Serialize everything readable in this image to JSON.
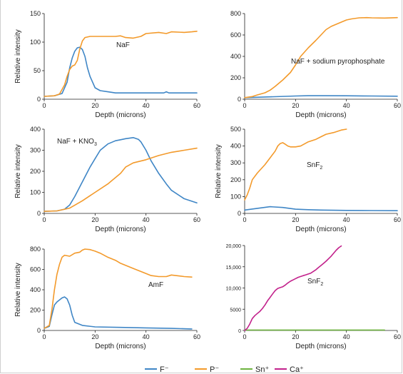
{
  "chart_data": [
    {
      "type": "line",
      "annotation": "NaF",
      "xlabel": "Depth (microns)",
      "ylabel": "Relative intensity",
      "xlim": [
        0,
        60
      ],
      "ylim": [
        0,
        150
      ],
      "xticks": [
        "0",
        "20",
        "40",
        "60"
      ],
      "yticks": [
        "0",
        "50",
        "100",
        "150"
      ],
      "series": [
        {
          "name": "F⁻",
          "color": "#3f86c6",
          "x": [
            0,
            4,
            7,
            9,
            10,
            11,
            12,
            13,
            14,
            15,
            16,
            17,
            18,
            20,
            22,
            25,
            28,
            30,
            35,
            40,
            45,
            47,
            48,
            49,
            50,
            55,
            60
          ],
          "y": [
            5,
            6,
            10,
            30,
            55,
            72,
            84,
            90,
            91,
            87,
            75,
            55,
            40,
            20,
            15,
            13,
            11,
            11,
            11,
            11,
            11,
            11,
            13,
            11,
            11,
            11,
            11
          ]
        },
        {
          "name": "P⁻",
          "color": "#f39a2b",
          "x": [
            0,
            4,
            6,
            8,
            9,
            10,
            11,
            12,
            13,
            14,
            15,
            16,
            18,
            20,
            25,
            28,
            30,
            32,
            35,
            38,
            40,
            45,
            48,
            50,
            55,
            58,
            60
          ],
          "y": [
            5,
            6,
            9,
            25,
            40,
            52,
            58,
            60,
            68,
            88,
            102,
            108,
            110,
            110,
            110,
            110,
            111,
            108,
            107,
            110,
            115,
            117,
            115,
            118,
            117,
            118,
            119
          ]
        }
      ]
    },
    {
      "type": "line",
      "annotation": "NaF + sodium pyrophosphate",
      "xlabel": "Depth (microns)",
      "ylabel": "",
      "xlim": [
        0,
        60
      ],
      "ylim": [
        0,
        800
      ],
      "xticks": [
        "0",
        "20",
        "40",
        "60"
      ],
      "yticks": [
        "0",
        "200",
        "400",
        "600",
        "800"
      ],
      "series": [
        {
          "name": "F⁻",
          "color": "#3f86c6",
          "x": [
            0,
            10,
            20,
            25,
            30,
            40,
            50,
            60
          ],
          "y": [
            15,
            22,
            30,
            33,
            33,
            32,
            30,
            28
          ]
        },
        {
          "name": "P⁻",
          "color": "#f39a2b",
          "x": [
            0,
            3,
            5,
            8,
            10,
            12,
            15,
            18,
            20,
            22,
            25,
            28,
            30,
            32,
            34,
            35,
            36,
            38,
            40,
            42,
            45,
            48,
            50,
            55,
            60
          ],
          "y": [
            15,
            25,
            40,
            60,
            85,
            120,
            180,
            250,
            320,
            400,
            480,
            550,
            600,
            650,
            680,
            690,
            700,
            720,
            740,
            750,
            760,
            762,
            760,
            758,
            762
          ]
        }
      ]
    },
    {
      "type": "line",
      "annotation": "NaF + KNO3",
      "xlabel": "Depth (microns)",
      "ylabel": "Relative intensity",
      "xlim": [
        0,
        60
      ],
      "ylim": [
        0,
        400
      ],
      "xticks": [
        "0",
        "20",
        "40",
        "60"
      ],
      "yticks": [
        "0",
        "100",
        "200",
        "300",
        "400"
      ],
      "series": [
        {
          "name": "F⁻",
          "color": "#3f86c6",
          "x": [
            0,
            5,
            8,
            10,
            12,
            15,
            18,
            20,
            22,
            25,
            28,
            30,
            32,
            35,
            37,
            38,
            40,
            42,
            45,
            48,
            50,
            55,
            60
          ],
          "y": [
            10,
            12,
            20,
            40,
            80,
            150,
            220,
            260,
            300,
            330,
            345,
            350,
            355,
            360,
            352,
            340,
            300,
            250,
            190,
            140,
            110,
            70,
            50
          ]
        },
        {
          "name": "P⁻",
          "color": "#f39a2b",
          "x": [
            0,
            5,
            10,
            15,
            20,
            25,
            30,
            32,
            35,
            40,
            45,
            50,
            55,
            60
          ],
          "y": [
            10,
            12,
            25,
            60,
            100,
            140,
            190,
            220,
            240,
            255,
            275,
            290,
            300,
            310
          ]
        }
      ]
    },
    {
      "type": "line",
      "annotation": "SnF2",
      "xlabel": "Depth (microns)",
      "ylabel": "Relative intensity",
      "xlim": [
        0,
        60
      ],
      "ylim": [
        0,
        500
      ],
      "xticks": [
        "0",
        "20",
        "40",
        "60"
      ],
      "yticks": [
        "0",
        "100",
        "200",
        "300",
        "400",
        "500"
      ],
      "series": [
        {
          "name": "F⁻",
          "color": "#3f86c6",
          "x": [
            0,
            5,
            10,
            15,
            20,
            25,
            30,
            40,
            50,
            60
          ],
          "y": [
            20,
            30,
            40,
            35,
            25,
            22,
            20,
            18,
            17,
            16
          ]
        },
        {
          "name": "P⁻",
          "color": "#f39a2b",
          "x": [
            0,
            1,
            2,
            3,
            5,
            8,
            10,
            12,
            13,
            14,
            15,
            16,
            17,
            18,
            20,
            22,
            25,
            28,
            30,
            32,
            35,
            38,
            40
          ],
          "y": [
            80,
            110,
            150,
            200,
            240,
            290,
            330,
            370,
            400,
            415,
            420,
            410,
            400,
            395,
            395,
            400,
            425,
            440,
            455,
            470,
            480,
            495,
            500
          ]
        }
      ]
    },
    {
      "type": "line",
      "annotation": "AmF",
      "xlabel": "Depth (microns)",
      "ylabel": "Relative intensity",
      "xlim": [
        0,
        60
      ],
      "ylim": [
        0,
        800
      ],
      "xticks": [
        "0",
        "20",
        "40",
        "60"
      ],
      "yticks": [
        "0",
        "200",
        "400",
        "600",
        "800"
      ],
      "series": [
        {
          "name": "F⁻",
          "color": "#3f86c6",
          "x": [
            0,
            2,
            3,
            4,
            5,
            6,
            7,
            8,
            9,
            10,
            11,
            12,
            15,
            20,
            30,
            40,
            50,
            58
          ],
          "y": [
            20,
            40,
            150,
            250,
            280,
            300,
            320,
            330,
            310,
            250,
            150,
            80,
            50,
            35,
            30,
            25,
            20,
            15
          ]
        },
        {
          "name": "P⁻",
          "color": "#f39a2b",
          "x": [
            0,
            2,
            3,
            4,
            5,
            6,
            7,
            8,
            10,
            12,
            14,
            15,
            16,
            18,
            20,
            22,
            25,
            28,
            30,
            35,
            38,
            40,
            42,
            45,
            48,
            50,
            55,
            58
          ],
          "y": [
            20,
            50,
            200,
            400,
            550,
            650,
            720,
            740,
            730,
            760,
            770,
            790,
            800,
            795,
            780,
            760,
            720,
            690,
            660,
            610,
            580,
            560,
            540,
            530,
            530,
            545,
            530,
            525
          ]
        }
      ]
    },
    {
      "type": "line",
      "annotation": "SnF2",
      "xlabel": "Depth (microns)",
      "ylabel": "",
      "xlim": [
        0,
        60
      ],
      "ylim": [
        0,
        20000
      ],
      "xticks": [
        "0",
        "20",
        "40",
        "60"
      ],
      "yticks": [
        "0",
        "5000",
        "10,000",
        "15,000",
        "20,000"
      ],
      "series": [
        {
          "name": "Sn⁺",
          "color": "#6db33f",
          "x": [
            0,
            10,
            20,
            30,
            40,
            50,
            55
          ],
          "y": [
            100,
            100,
            100,
            100,
            100,
            100,
            100
          ]
        },
        {
          "name": "Ca⁺",
          "color": "#c2218b",
          "x": [
            0,
            1,
            2,
            3,
            4,
            5,
            6,
            7,
            8,
            9,
            10,
            11,
            12,
            13,
            14,
            15,
            16,
            17,
            18,
            19,
            20,
            21,
            22,
            23,
            24,
            25,
            26,
            27,
            28,
            29,
            30,
            31,
            32,
            33,
            34,
            35,
            36,
            37,
            38
          ],
          "y": [
            0,
            500,
            1500,
            2800,
            3500,
            4000,
            4500,
            5200,
            6000,
            7000,
            7800,
            8600,
            9400,
            9900,
            10100,
            10300,
            10700,
            11200,
            11600,
            11900,
            12200,
            12500,
            12700,
            12900,
            13100,
            13300,
            13500,
            13900,
            14300,
            14800,
            15300,
            15800,
            16300,
            16900,
            17500,
            18200,
            18900,
            19500,
            19900
          ]
        }
      ]
    }
  ],
  "legend": [
    {
      "label": "F⁻",
      "color": "#3f86c6"
    },
    {
      "label": "P⁻",
      "color": "#f39a2b"
    },
    {
      "label": "Sn⁺",
      "color": "#6db33f"
    },
    {
      "label": "Ca⁺",
      "color": "#c2218b"
    }
  ]
}
